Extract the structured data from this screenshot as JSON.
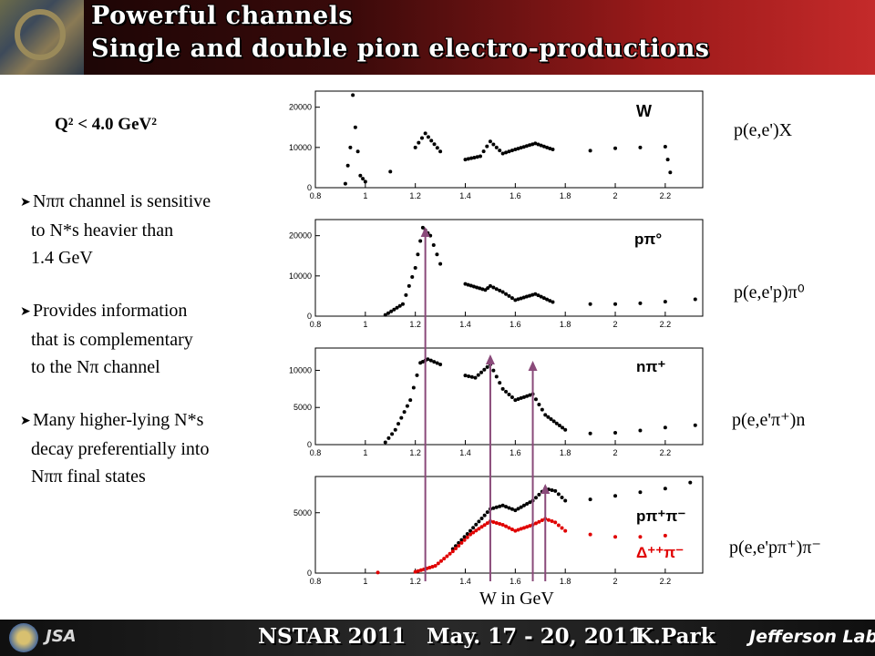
{
  "slide": {
    "title_line1": "Powerful channels",
    "title_line2": "Single and double pion electro-productions",
    "q2_text": "Q² < 4.0 GeV²",
    "bullets": [
      {
        "lines": [
          "Nππ channel is sensitive",
          "to N*s heavier than",
          "1.4 GeV"
        ]
      },
      {
        "lines": [
          "Provides information",
          "that is complementary",
          "to the Nπ channel"
        ]
      },
      {
        "lines": [
          "Many higher-lying N*s",
          "decay preferentially into",
          "Nππ final states"
        ]
      }
    ],
    "reaction_labels": [
      "p(e,e')X",
      "p(e,e'p)π⁰",
      "p(e,e'π⁺)n",
      "p(e,e'pπ⁺)π⁻"
    ],
    "x_axis_label": "W in GeV",
    "footer": {
      "conference": "NSTAR 2011",
      "dates": "May. 17 - 20, 2011",
      "author": "K.Park",
      "lab": "Jefferson Lab",
      "jsa": "JSA"
    }
  },
  "colors": {
    "black_series": "#000000",
    "red_series": "#e00000",
    "arrow": "#8a4a7a",
    "header_dark": "#140404",
    "header_red": "#c42a2a"
  },
  "chart_data": [
    {
      "type": "scatter",
      "panel_label": "W",
      "xticks": [
        "0.8",
        "1",
        "1.2",
        "1.4",
        "1.6",
        "1.8",
        "2",
        "2.2"
      ],
      "yticks": [
        "0",
        "10000",
        "20000"
      ],
      "xlim": [
        0.8,
        2.35
      ],
      "ylim": [
        0,
        24000
      ],
      "series": [
        {
          "color": "#000000",
          "points": [
            [
              0.92,
              1000
            ],
            [
              0.94,
              10000
            ],
            [
              0.95,
              23000
            ],
            [
              0.96,
              15000
            ],
            [
              0.98,
              3000
            ],
            [
              1.0,
              1500
            ],
            [
              1.1,
              4000
            ],
            [
              1.2,
              10000
            ],
            [
              1.24,
              13500
            ],
            [
              1.3,
              9000
            ],
            [
              1.4,
              7000
            ],
            [
              1.46,
              7800
            ],
            [
              1.5,
              11500
            ],
            [
              1.55,
              8500
            ],
            [
              1.6,
              9500
            ],
            [
              1.68,
              11000
            ],
            [
              1.75,
              9500
            ],
            [
              1.9,
              9200
            ],
            [
              2.0,
              9800
            ],
            [
              2.1,
              10000
            ],
            [
              2.2,
              10200
            ],
            [
              2.22,
              3800
            ]
          ]
        }
      ]
    },
    {
      "type": "scatter",
      "panel_label": "pπ°",
      "xticks": [
        "0.8",
        "1",
        "1.2",
        "1.4",
        "1.6",
        "1.8",
        "2",
        "2.2"
      ],
      "yticks": [
        "0",
        "10000",
        "20000"
      ],
      "xlim": [
        0.8,
        2.35
      ],
      "ylim": [
        0,
        24000
      ],
      "series": [
        {
          "color": "#000000",
          "points": [
            [
              1.08,
              300
            ],
            [
              1.15,
              3000
            ],
            [
              1.2,
              12000
            ],
            [
              1.23,
              22000
            ],
            [
              1.26,
              20000
            ],
            [
              1.3,
              13000
            ],
            [
              1.4,
              8000
            ],
            [
              1.48,
              6500
            ],
            [
              1.5,
              7500
            ],
            [
              1.55,
              6000
            ],
            [
              1.6,
              4000
            ],
            [
              1.68,
              5500
            ],
            [
              1.75,
              3500
            ],
            [
              1.9,
              3000
            ],
            [
              2.0,
              3000
            ],
            [
              2.1,
              3200
            ],
            [
              2.2,
              3600
            ],
            [
              2.32,
              4200
            ]
          ]
        }
      ]
    },
    {
      "type": "scatter",
      "panel_label": "nπ⁺",
      "xticks": [
        "0.8",
        "1",
        "1.2",
        "1.4",
        "1.6",
        "1.8",
        "2",
        "2.2"
      ],
      "yticks": [
        "0",
        "5000",
        "10000"
      ],
      "xlim": [
        0.8,
        2.35
      ],
      "ylim": [
        0,
        13000
      ],
      "series": [
        {
          "color": "#000000",
          "points": [
            [
              1.08,
              300
            ],
            [
              1.12,
              2000
            ],
            [
              1.18,
              6000
            ],
            [
              1.22,
              11000
            ],
            [
              1.25,
              11500
            ],
            [
              1.3,
              10800
            ],
            [
              1.4,
              9300
            ],
            [
              1.44,
              9000
            ],
            [
              1.5,
              10800
            ],
            [
              1.55,
              7500
            ],
            [
              1.6,
              6000
            ],
            [
              1.67,
              6800
            ],
            [
              1.72,
              4000
            ],
            [
              1.8,
              2000
            ],
            [
              1.9,
              1500
            ],
            [
              2.0,
              1600
            ],
            [
              2.1,
              1900
            ],
            [
              2.2,
              2300
            ],
            [
              2.32,
              2600
            ]
          ]
        }
      ]
    },
    {
      "type": "scatter",
      "panel_label": "pπ⁺π⁻ / Δ⁺⁺π⁻",
      "xticks": [
        "0.8",
        "1",
        "1.2",
        "1.4",
        "1.6",
        "1.8",
        "2",
        "2.2"
      ],
      "yticks": [
        "0",
        "5000"
      ],
      "xlim": [
        0.8,
        2.35
      ],
      "ylim": [
        0,
        8000
      ],
      "series": [
        {
          "name": "pπ⁺π⁻",
          "color": "#000000",
          "points": [
            [
              1.35,
              2000
            ],
            [
              1.42,
              3500
            ],
            [
              1.5,
              5300
            ],
            [
              1.55,
              5600
            ],
            [
              1.6,
              5200
            ],
            [
              1.67,
              6000
            ],
            [
              1.72,
              7000
            ],
            [
              1.76,
              6800
            ],
            [
              1.8,
              6000
            ],
            [
              1.9,
              6100
            ],
            [
              2.0,
              6400
            ],
            [
              2.1,
              6700
            ],
            [
              2.2,
              7000
            ],
            [
              2.3,
              7500
            ]
          ]
        },
        {
          "name": "Δ⁺⁺π⁻",
          "color": "#e00000",
          "points": [
            [
              1.05,
              50
            ],
            [
              1.2,
              100
            ],
            [
              1.28,
              600
            ],
            [
              1.35,
              1800
            ],
            [
              1.42,
              3200
            ],
            [
              1.5,
              4300
            ],
            [
              1.55,
              4000
            ],
            [
              1.6,
              3500
            ],
            [
              1.67,
              4000
            ],
            [
              1.72,
              4500
            ],
            [
              1.76,
              4200
            ],
            [
              1.8,
              3500
            ],
            [
              1.9,
              3200
            ],
            [
              2.0,
              3000
            ],
            [
              2.1,
              3000
            ],
            [
              2.2,
              3100
            ]
          ]
        }
      ]
    }
  ]
}
